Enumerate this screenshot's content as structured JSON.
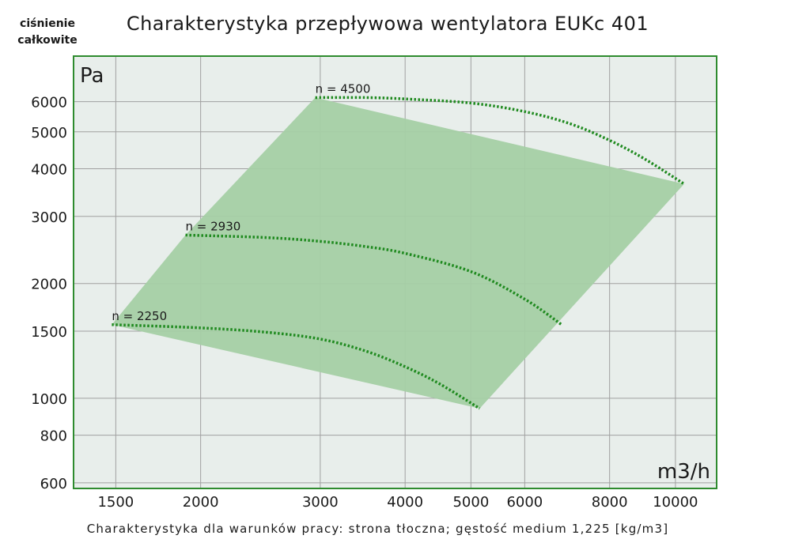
{
  "chart_data": {
    "type": "line",
    "title": "Charakterystyka przepływowa wentylatora EUKc 401",
    "ylabel_lines": [
      "ciśnienie",
      "całkowite"
    ],
    "x_unit": "m3/h",
    "y_unit": "Pa",
    "footnote": "Charakterystyka dla warunków pracy: strona tłoczna; gęstość medium 1,225 [kg/m3]",
    "xscale": "log",
    "yscale": "log",
    "xlim": [
      1300,
      11500
    ],
    "ylim": [
      580,
      7900
    ],
    "grid": true,
    "x_ticks": [
      1500,
      2000,
      3000,
      4000,
      5000,
      6000,
      8000,
      10000
    ],
    "x_tick_labels": [
      "1500",
      "2000",
      "3000",
      "4000",
      "5000",
      "6000",
      "8000",
      "10000"
    ],
    "y_ticks": [
      600,
      800,
      1000,
      1500,
      2000,
      3000,
      4000,
      5000,
      6000
    ],
    "y_tick_labels": [
      "600",
      "800",
      "1000",
      "1500",
      "2000",
      "3000",
      "4000",
      "5000",
      "6000"
    ],
    "operating_region": [
      [
        1480,
        1560
      ],
      [
        1900,
        2680
      ],
      [
        2950,
        6150
      ],
      [
        10300,
        3650
      ],
      [
        5150,
        940
      ]
    ],
    "series": [
      {
        "name": "n = 2250",
        "x": [
          1480,
          2000,
          2500,
          3000,
          3500,
          4000,
          4500,
          5150
        ],
        "y": [
          1560,
          1530,
          1490,
          1430,
          1330,
          1210,
          1090,
          940
        ]
      },
      {
        "name": "n = 2930",
        "x": [
          1900,
          2500,
          3000,
          3500,
          4000,
          5000,
          6000,
          6800
        ],
        "y": [
          2680,
          2640,
          2580,
          2500,
          2400,
          2150,
          1820,
          1560
        ]
      },
      {
        "name": "n = 4500",
        "x": [
          2950,
          3500,
          4000,
          5000,
          6000,
          7000,
          8000,
          9000,
          10300
        ],
        "y": [
          6150,
          6150,
          6100,
          5950,
          5650,
          5250,
          4750,
          4250,
          3650
        ]
      }
    ],
    "colors": {
      "region_fill": "#a5cfa5",
      "curve": "#1f8a1f",
      "frame": "#2e8b2e",
      "plot_bg": "#e8eeeb",
      "grid": "#a0a0a0"
    }
  }
}
